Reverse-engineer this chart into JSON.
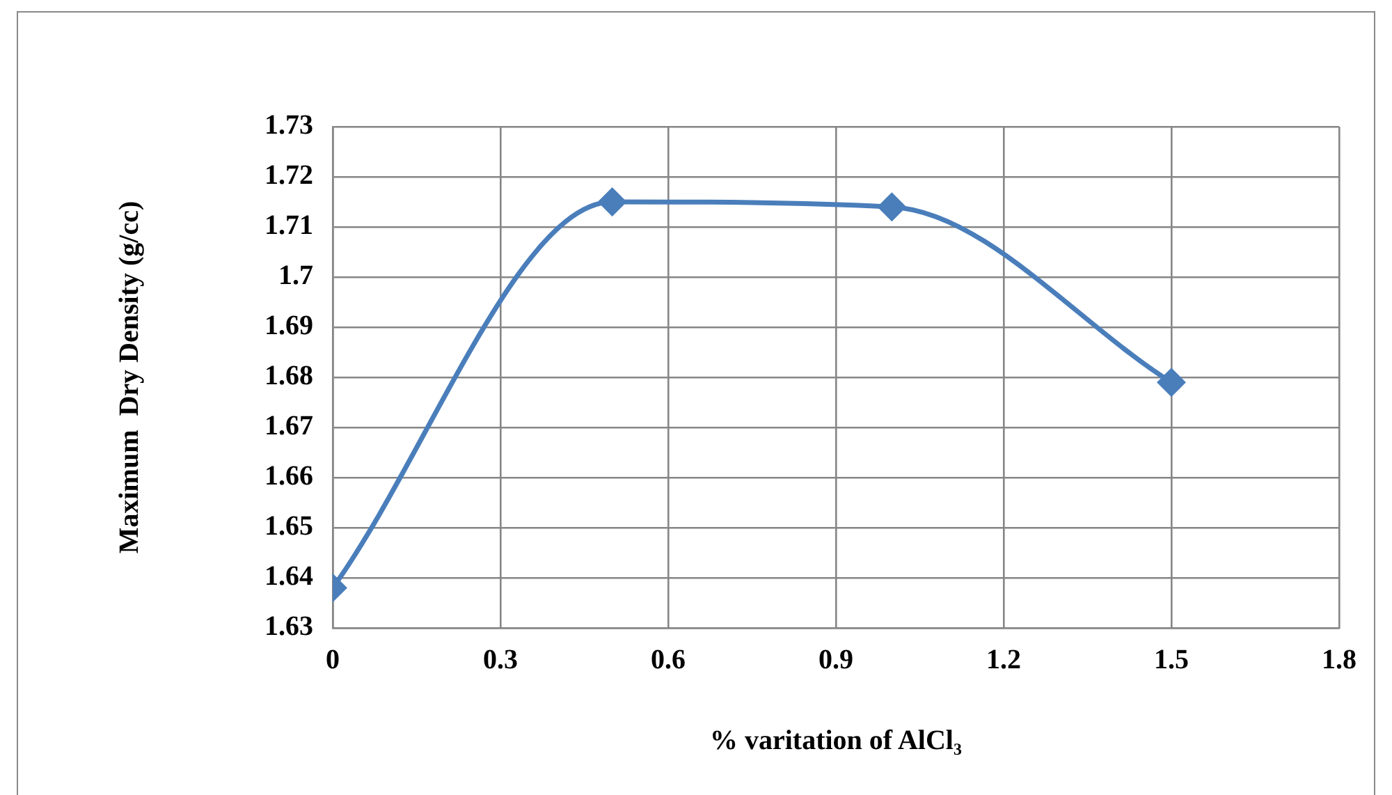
{
  "chart_data": {
    "type": "line",
    "xlabel": "% varitation of AlCl₃",
    "ylabel": "Maximum  Dry Density (g/cc)",
    "x": [
      0,
      0.5,
      1.0,
      1.5
    ],
    "series": [
      {
        "color": "#4a7ebb",
        "values": [
          1.638,
          1.715,
          1.714,
          1.679
        ]
      }
    ],
    "xlim": [
      0,
      1.8
    ],
    "xticks": [
      0,
      0.3,
      0.6,
      0.9,
      1.2,
      1.5,
      1.8
    ],
    "ylim": [
      1.63,
      1.73
    ],
    "yticks": [
      1.63,
      1.64,
      1.65,
      1.66,
      1.67,
      1.68,
      1.69,
      1.7,
      1.71,
      1.72,
      1.73
    ],
    "grid": true,
    "legend": false,
    "marker": "diamond",
    "line_style": "solid"
  }
}
